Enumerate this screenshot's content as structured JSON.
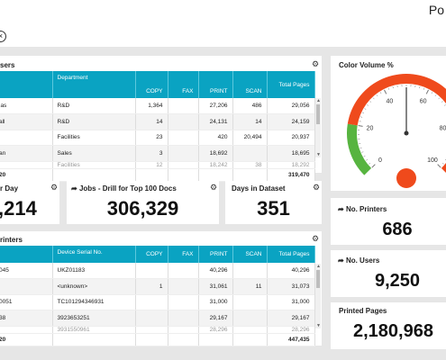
{
  "header": {
    "brand": "Po",
    "close_glyph": "×"
  },
  "users_table": {
    "title": "sers",
    "headers": [
      "",
      "Department",
      "COPY",
      "FAX",
      "PRINT",
      "SCAN",
      "Total Pages"
    ],
    "rows": [
      [
        "las",
        "R&D",
        "1,364",
        "",
        "27,206",
        "486",
        "29,056"
      ],
      [
        "all",
        "R&D",
        "14",
        "",
        "24,131",
        "14",
        "24,159"
      ],
      [
        "",
        "Facilities",
        "23",
        "",
        "420",
        "20,494",
        "20,937"
      ],
      [
        "an",
        "Sales",
        "3",
        "",
        "18,692",
        "",
        "18,695"
      ],
      [
        "",
        "Facilities",
        "12",
        "",
        "18,242",
        "38",
        "18,292"
      ]
    ],
    "total": [
      "20",
      "",
      "",
      "",
      "",
      "",
      "319,470"
    ]
  },
  "kpi_day": {
    "title": "r Day",
    "value": ",214"
  },
  "kpi_jobs": {
    "title": "Jobs - Drill for Top 100 Docs",
    "value": "306,329"
  },
  "kpi_days": {
    "title": "Days in Dataset",
    "value": "351"
  },
  "printers_table": {
    "title": "rinters",
    "headers": [
      "",
      "Device Serial No.",
      "COPY",
      "FAX",
      "PRINT",
      "SCAN",
      "Total Pages"
    ],
    "rows": [
      [
        "045",
        "UKZ01183",
        "",
        "",
        "40,296",
        "",
        "40,296"
      ],
      [
        "",
        "<unknown>",
        "1",
        "",
        "31,061",
        "11",
        "31,073"
      ],
      [
        "0051",
        "TC101294346931",
        "",
        "",
        "31,000",
        "",
        "31,000"
      ],
      [
        "38",
        "3923653251",
        "",
        "",
        "29,167",
        "",
        "29,167"
      ],
      [
        "",
        "3931550961",
        "",
        "",
        "28,296",
        "",
        "28,296"
      ]
    ],
    "total": [
      "20",
      "",
      "",
      "",
      "",
      "",
      "447,435"
    ]
  },
  "gauge": {
    "title": "Color Volume %",
    "ticks": [
      "0",
      "20",
      "40",
      "60",
      "80",
      "100"
    ],
    "value": 50,
    "colors": {
      "green": "#57b440",
      "red": "#ef4a1c",
      "needle": "#333333"
    }
  },
  "kpi_printers": {
    "title": "No. Printers",
    "value": "686"
  },
  "kpi_users": {
    "title": "No. Users",
    "value": "9,250"
  },
  "kpi_pages": {
    "title": "Printed Pages",
    "value": "2,180,968"
  }
}
